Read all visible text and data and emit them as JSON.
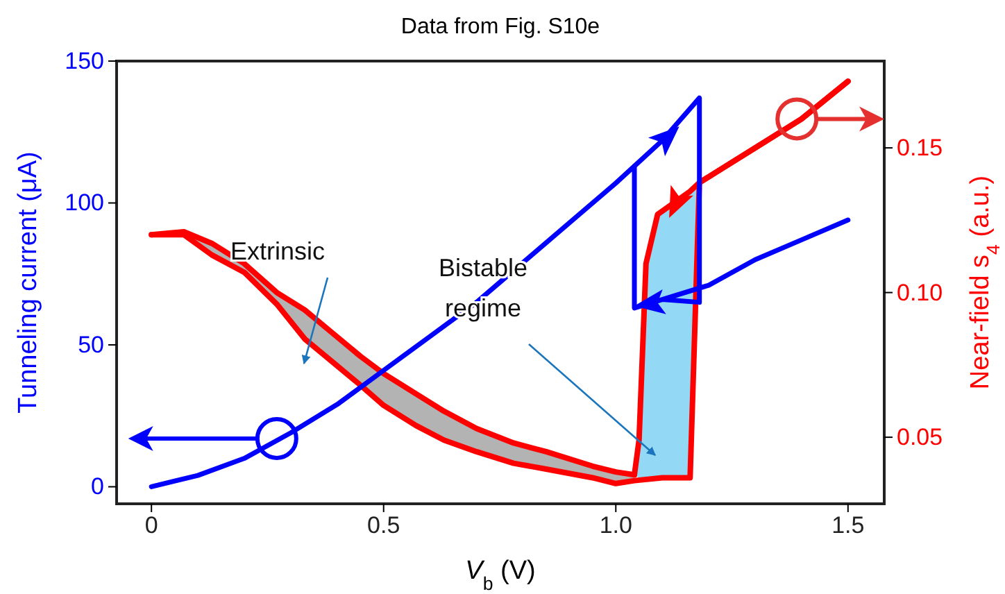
{
  "chart_data": {
    "type": "line",
    "title": "Data from Fig. S10e",
    "xlabel": "V$_{b}$ (V)",
    "ylabel": "Tunneling current (μA)",
    "y2label": "Near-field s$_{4}$ (a.u.)",
    "annotations": [
      "Extrinsic",
      "Bistable regime"
    ],
    "xlim": [
      -0.075,
      1.578
    ],
    "xticks": [
      0,
      0.5,
      {
        "value": 1,
        "label": "1.0"
      },
      1.5
    ],
    "ylim": [
      -6,
      150
    ],
    "yticks": [
      0,
      50,
      100,
      150
    ],
    "y2lim": [
      0.027,
      0.18
    ],
    "y2ticks": [
      0.05,
      {
        "value": 0.1,
        "label": "0.10"
      },
      0.15
    ],
    "series": [
      {
        "axis": "y2",
        "color": "#ff0000",
        "x": [
          0,
          0.07,
          0.13,
          0.2,
          0.27,
          0.33,
          0.39,
          0.45,
          0.5,
          0.57,
          0.63,
          0.7,
          0.78,
          0.85,
          0.95,
          1.0,
          1.04
        ],
        "values": [
          0.12,
          0.121,
          0.117,
          0.11,
          0.1,
          0.094,
          0.086,
          0.078,
          0.072,
          0.065,
          0.059,
          0.053,
          0.048,
          0.045,
          0.04,
          0.038,
          0.037
        ],
        "lower": [
          0.12,
          0.12,
          0.113,
          0.107,
          0.096,
          0.084,
          0.076,
          0.068,
          0.061,
          0.054,
          0.049,
          0.045,
          0.041,
          0.039,
          0.036,
          0.034,
          0.035
        ],
        "upper": [
          0.12,
          0.121,
          0.117,
          0.11,
          0.1,
          0.094,
          0.086,
          0.078,
          0.072,
          0.065,
          0.059,
          0.053,
          0.048,
          0.045,
          0.04,
          0.038,
          0.037
        ]
      },
      {
        "axis": "y2",
        "color": "#ff0000",
        "x": [
          1.5,
          1.4,
          1.3,
          1.2,
          1.18,
          1.16,
          1.09,
          1.065,
          1.05,
          1.04
        ],
        "values": [
          0.173,
          0.16,
          0.15,
          0.14,
          0.138,
          0.135,
          0.127,
          0.11,
          0.049,
          0.037
        ],
        "lower": [
          null,
          null,
          null,
          null,
          0.138,
          0.036,
          0.036,
          0.036,
          0.036,
          0.037
        ],
        "upper": [
          null,
          null,
          null,
          null,
          0.138,
          0.135,
          0.127,
          0.11,
          0.049,
          0.037
        ]
      },
      {
        "axis": "y2",
        "color": "#ff0000",
        "x": [
          0,
          0.07,
          0.13,
          0.2,
          0.27,
          0.33,
          0.39,
          0.45,
          0.5,
          0.57,
          0.63,
          0.7,
          0.78,
          0.85,
          0.95,
          1.0,
          1.04,
          1.1,
          1.16,
          1.18,
          1.2,
          1.3,
          1.4,
          1.5
        ],
        "values": [
          0.12,
          0.12,
          0.113,
          0.107,
          0.096,
          0.084,
          0.076,
          0.068,
          0.061,
          0.054,
          0.049,
          0.045,
          0.041,
          0.039,
          0.036,
          0.034,
          0.035,
          0.036,
          0.036,
          0.138,
          0.14,
          0.15,
          0.16,
          0.173
        ]
      },
      {
        "axis": "y",
        "color": "#0000ff",
        "x": [
          0,
          0.1,
          0.2,
          0.3,
          0.4,
          0.5,
          0.6,
          0.7,
          0.75,
          0.8,
          0.9,
          1.0,
          1.04,
          1.1,
          1.18,
          1.18,
          1.1,
          1.2,
          1.3,
          1.4,
          1.5,
          1.4,
          1.3,
          1.2,
          1.1,
          1.04,
          1.04
        ],
        "values": [
          0,
          4,
          10,
          19,
          29,
          41,
          53,
          65,
          72,
          79,
          93,
          107,
          113,
          122,
          137,
          65,
          66,
          71,
          80,
          87,
          94,
          87,
          80,
          71,
          66,
          63,
          113
        ]
      }
    ]
  }
}
